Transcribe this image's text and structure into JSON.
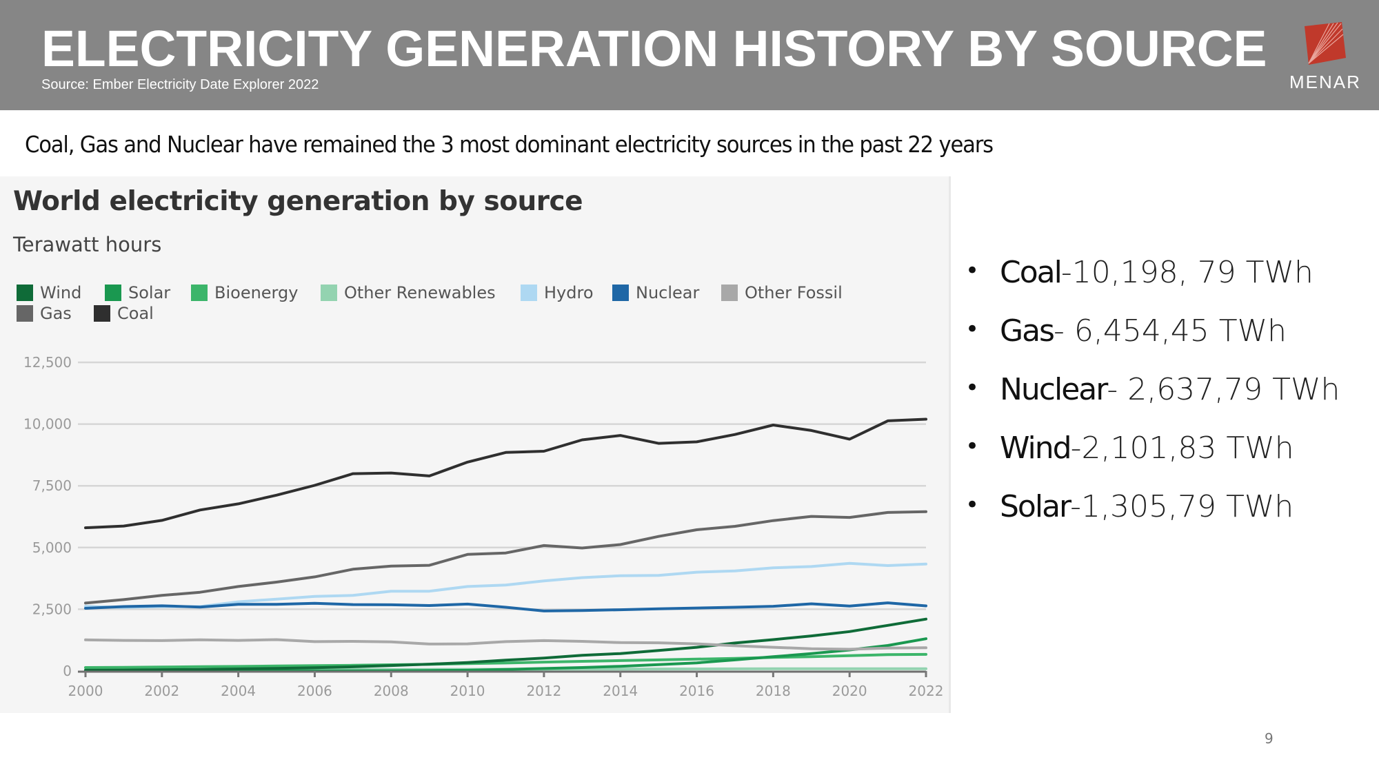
{
  "header": {
    "title": "ELECTRICITY GENERATION HISTORY BY SOURCE",
    "source": "Source:  Ember Electricity Date Explorer 2022",
    "logo_text": "MENAR",
    "logo_color": "#c0392b"
  },
  "subtitle": "Coal, Gas and Nuclear have remained the 3 most dominant electricity sources in the past 22 years",
  "bullets": [
    {
      "name": "Coal",
      "value": "-10,198, 79 TWh"
    },
    {
      "name": "Gas",
      "value": "- 6,454,45 TWh"
    },
    {
      "name": "Nuclear",
      "value": "- 2,637,79 TWh"
    },
    {
      "name": "Wind",
      "value": "-2,101,83 TWh"
    },
    {
      "name": "Solar",
      "value": "-1,305,79 TWh"
    }
  ],
  "bullet_glyph": "•",
  "page_number": "9",
  "chart_data": {
    "type": "line",
    "title": "World electricity generation by source",
    "ylabel": "Terawatt hours",
    "xlabel": "",
    "x": [
      2000,
      2001,
      2002,
      2003,
      2004,
      2005,
      2006,
      2007,
      2008,
      2009,
      2010,
      2011,
      2012,
      2013,
      2014,
      2015,
      2016,
      2017,
      2018,
      2019,
      2020,
      2021,
      2022
    ],
    "x_ticks": [
      "2000",
      "2002",
      "2004",
      "2006",
      "2008",
      "2010",
      "2012",
      "2014",
      "2016",
      "2018",
      "2020",
      "2022"
    ],
    "y_ticks": [
      "0",
      "2,500",
      "5,000",
      "7,500",
      "10,000",
      "12,500"
    ],
    "ylim": [
      0,
      12500
    ],
    "grid": true,
    "legend_position": "top-left",
    "legend": [
      {
        "name": "Wind",
        "color": "#0f6b38"
      },
      {
        "name": "Solar",
        "color": "#1a9850"
      },
      {
        "name": "Bioenergy",
        "color": "#3cb56a"
      },
      {
        "name": "Other Renewables",
        "color": "#93d3b0"
      },
      {
        "name": "Hydro",
        "color": "#aed8f2"
      },
      {
        "name": "Nuclear",
        "color": "#1f67a6"
      },
      {
        "name": "Other Fossil",
        "color": "#a8a8a8"
      },
      {
        "name": "Gas",
        "color": "#666666"
      },
      {
        "name": "Coal",
        "color": "#2f2f2f"
      }
    ],
    "series": [
      {
        "name": "Other Renewables",
        "color": "#93d3b0",
        "values": [
          52,
          52,
          53,
          55,
          56,
          58,
          60,
          62,
          64,
          65,
          68,
          70,
          71,
          74,
          77,
          80,
          84,
          87,
          89,
          88,
          89,
          92,
          89
        ]
      },
      {
        "name": "Bioenergy",
        "color": "#3cb56a",
        "values": [
          139,
          145,
          160,
          172,
          185,
          200,
          215,
          230,
          250,
          268,
          300,
          325,
          360,
          390,
          420,
          450,
          480,
          510,
          550,
          580,
          620,
          660,
          672
        ]
      },
      {
        "name": "Solar",
        "color": "#1a9850",
        "values": [
          1,
          1,
          2,
          2,
          3,
          4,
          6,
          8,
          12,
          21,
          32,
          64,
          100,
          139,
          190,
          256,
          329,
          449,
          578,
          702,
          852,
          1033,
          1306
        ]
      },
      {
        "name": "Wind",
        "color": "#0f6b38",
        "values": [
          31,
          38,
          52,
          63,
          85,
          104,
          132,
          170,
          220,
          277,
          342,
          437,
          521,
          635,
          706,
          831,
          961,
          1134,
          1270,
          1420,
          1596,
          1848,
          2102
        ]
      },
      {
        "name": "Other Fossil",
        "color": "#a8a8a8",
        "values": [
          1260,
          1240,
          1230,
          1260,
          1240,
          1270,
          1190,
          1200,
          1180,
          1090,
          1100,
          1190,
          1230,
          1200,
          1150,
          1140,
          1100,
          1020,
          960,
          900,
          880,
          930,
          940
        ]
      },
      {
        "name": "Hydro",
        "color": "#aed8f2",
        "values": [
          2620,
          2570,
          2610,
          2610,
          2800,
          2910,
          3020,
          3060,
          3230,
          3230,
          3420,
          3480,
          3650,
          3780,
          3860,
          3870,
          4000,
          4050,
          4180,
          4230,
          4360,
          4270,
          4330
        ]
      },
      {
        "name": "Nuclear",
        "color": "#1f67a6",
        "values": [
          2540,
          2610,
          2640,
          2590,
          2700,
          2700,
          2740,
          2690,
          2680,
          2650,
          2710,
          2580,
          2430,
          2450,
          2480,
          2520,
          2550,
          2580,
          2620,
          2720,
          2630,
          2760,
          2638
        ]
      },
      {
        "name": "Gas",
        "color": "#666666",
        "values": [
          2750,
          2890,
          3060,
          3190,
          3420,
          3600,
          3810,
          4120,
          4250,
          4280,
          4720,
          4780,
          5080,
          4980,
          5120,
          5450,
          5720,
          5860,
          6090,
          6260,
          6220,
          6420,
          6454
        ]
      },
      {
        "name": "Coal",
        "color": "#2f2f2f",
        "values": [
          5800,
          5870,
          6100,
          6520,
          6770,
          7120,
          7520,
          7990,
          8020,
          7900,
          8460,
          8850,
          8900,
          9360,
          9540,
          9220,
          9280,
          9580,
          9960,
          9740,
          9390,
          10130,
          10199
        ]
      }
    ]
  }
}
